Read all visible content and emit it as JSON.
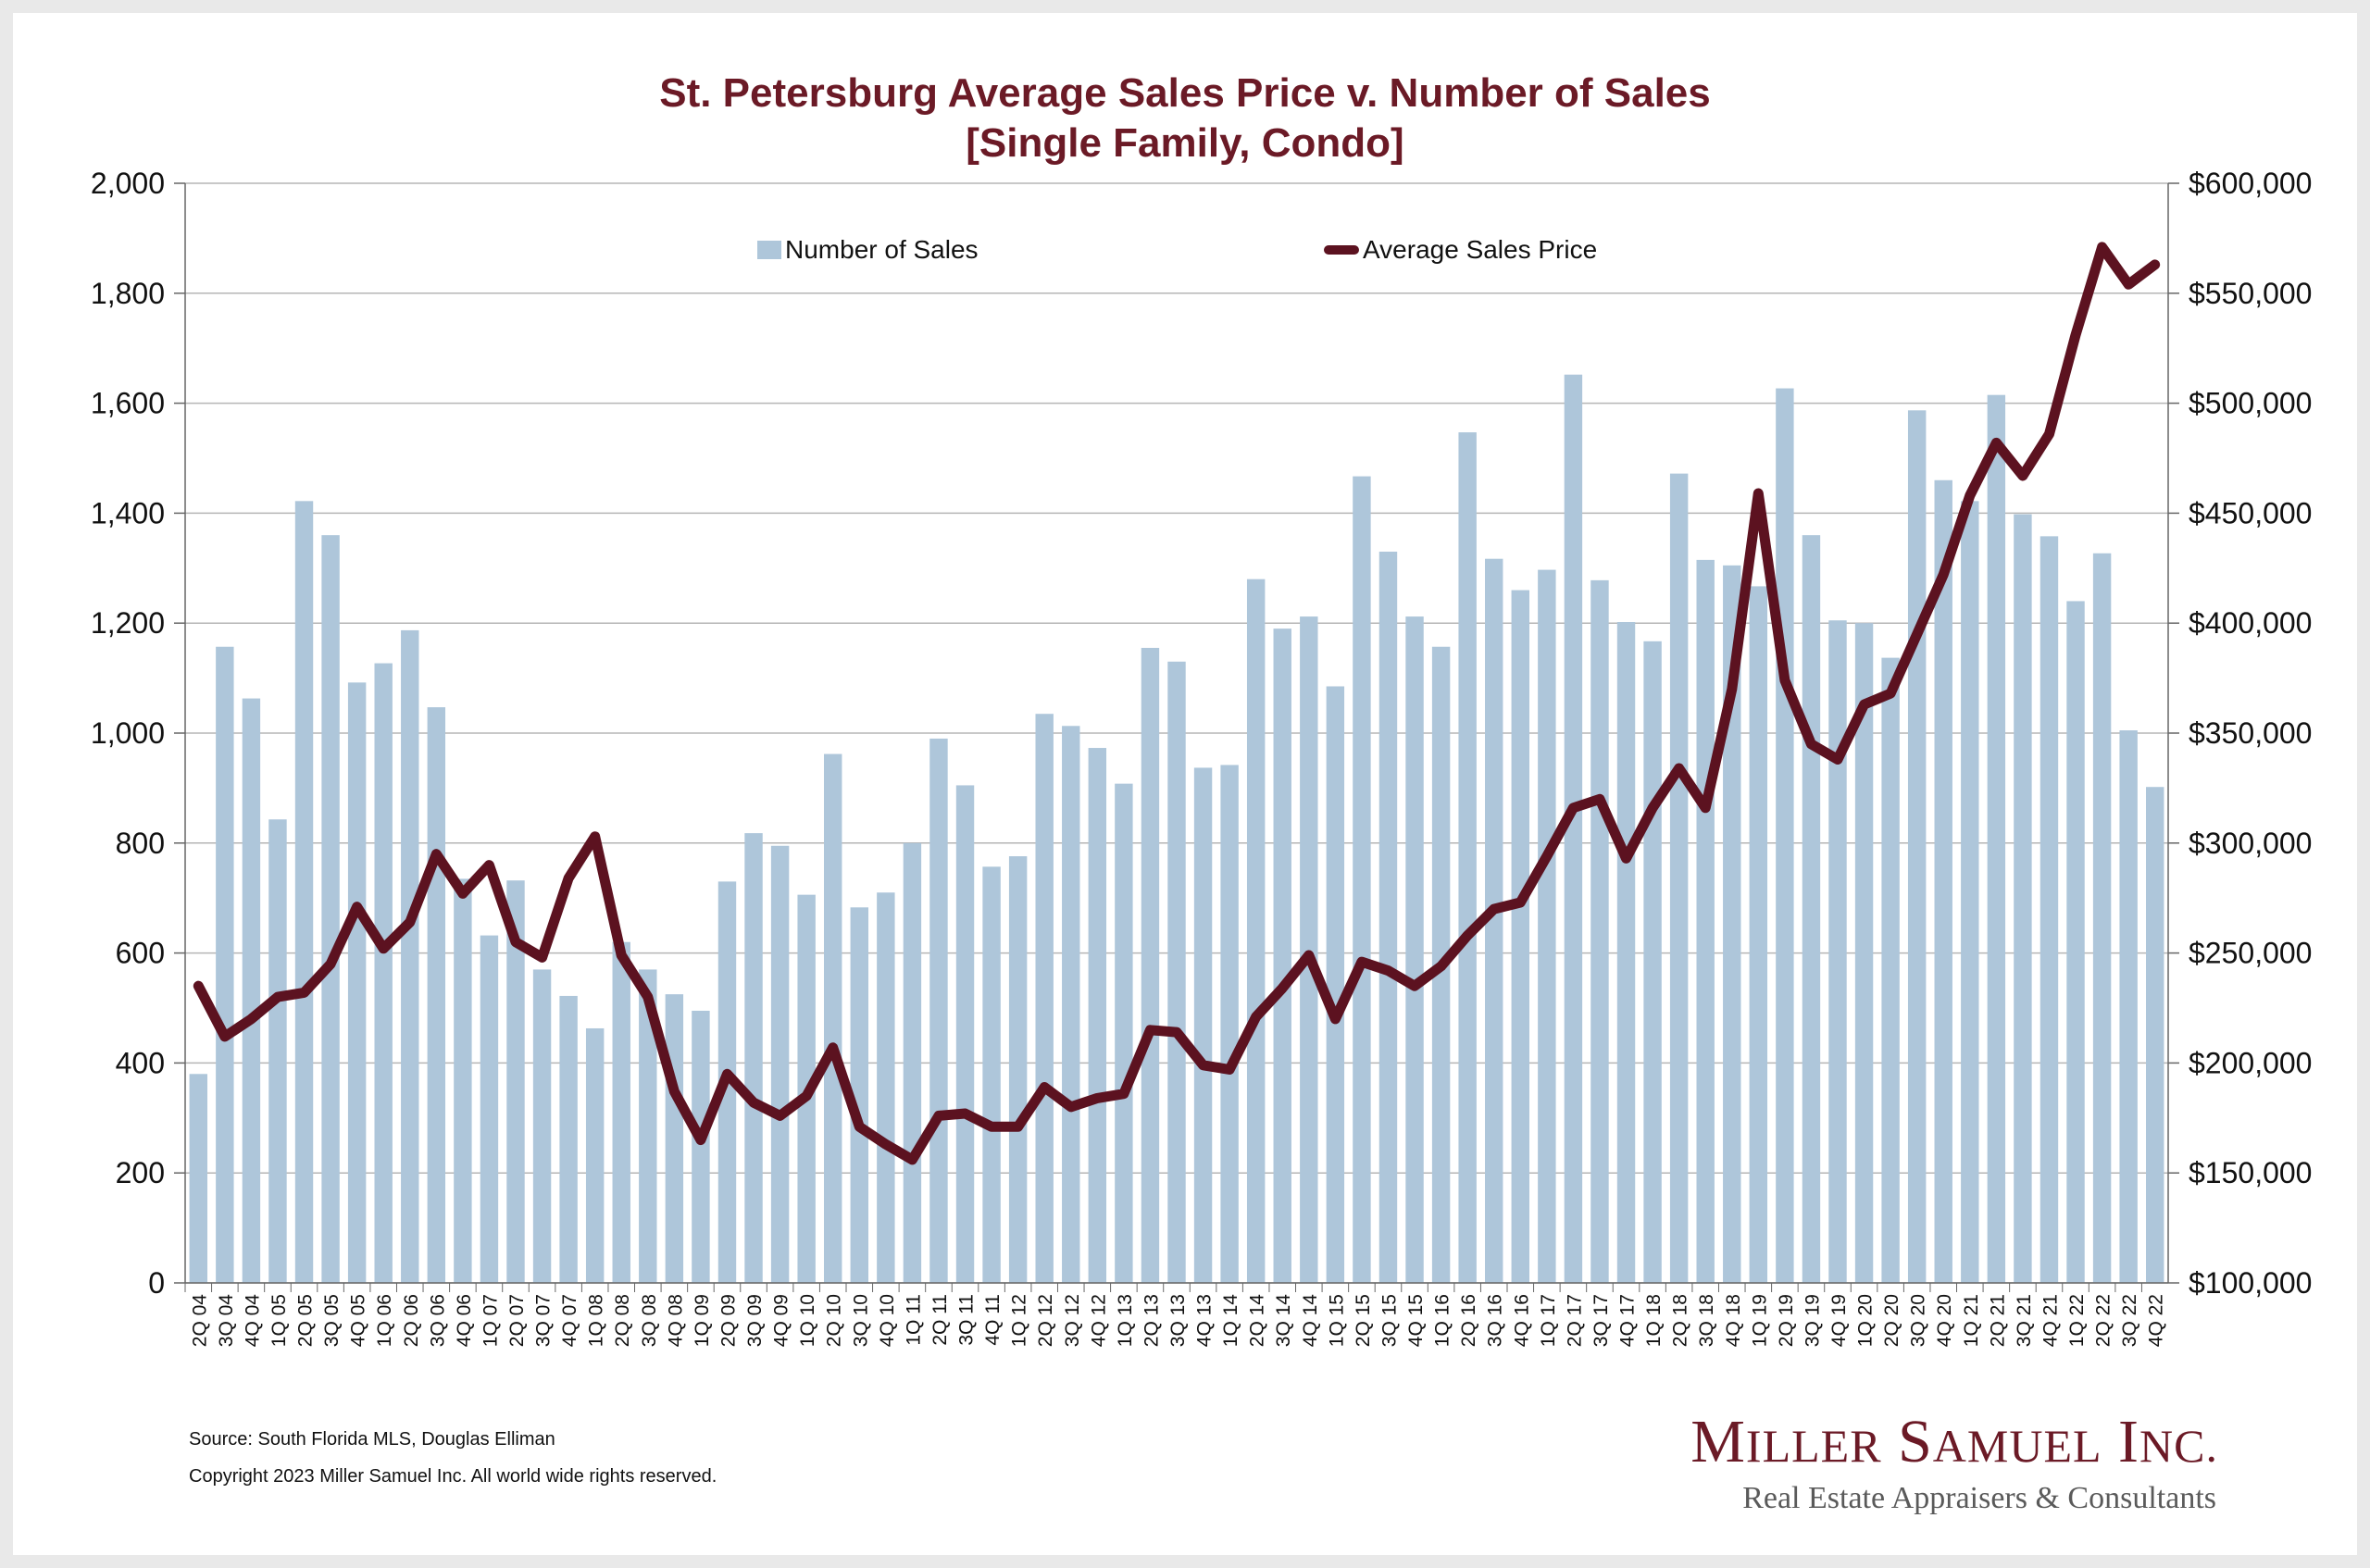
{
  "title": "St. Petersburg Average Sales Price v. Number of Sales",
  "subtitle": "[Single Family, Condo]",
  "legend": {
    "bars": "Number of Sales",
    "line": "Average Sales Price"
  },
  "footer": {
    "source": "Source: South Florida MLS, Douglas Elliman",
    "copyright": "Copyright 2023 Miller Samuel Inc.  All world wide rights reserved."
  },
  "logo": {
    "name_M": "M",
    "name_iller": "ILLER",
    "name_S": " S",
    "name_amuel": "AMUEL",
    "name_I": " I",
    "name_nc": "NC.",
    "tagline": "Real Estate Appraisers & Consultants"
  },
  "colors": {
    "bars": "#aec6da",
    "line": "#5c1220",
    "title": "#6b1a26",
    "grid": "#b5b5b5"
  },
  "chart_data": {
    "type": "bar",
    "title": "St. Petersburg Average Sales Price v. Number of Sales",
    "subtitle": "[Single Family, Condo]",
    "legend_position": "top",
    "grid": true,
    "categories": [
      "2Q 04",
      "3Q 04",
      "4Q 04",
      "1Q 05",
      "2Q 05",
      "3Q 05",
      "4Q 05",
      "1Q 06",
      "2Q 06",
      "3Q 06",
      "4Q 06",
      "1Q 07",
      "2Q 07",
      "3Q 07",
      "4Q 07",
      "1Q 08",
      "2Q 08",
      "3Q 08",
      "4Q 08",
      "1Q 09",
      "2Q 09",
      "3Q 09",
      "4Q 09",
      "1Q 10",
      "2Q 10",
      "3Q 10",
      "4Q 10",
      "1Q 11",
      "2Q 11",
      "3Q 11",
      "4Q 11",
      "1Q 12",
      "2Q 12",
      "3Q 12",
      "4Q 12",
      "1Q 13",
      "2Q 13",
      "3Q 13",
      "4Q 13",
      "1Q 14",
      "2Q 14",
      "3Q 14",
      "4Q 14",
      "1Q 15",
      "2Q 15",
      "3Q 15",
      "4Q 15",
      "1Q 16",
      "2Q 16",
      "3Q 16",
      "4Q 16",
      "1Q 17",
      "2Q 17",
      "3Q 17",
      "4Q 17",
      "1Q 18",
      "2Q 18",
      "3Q 18",
      "4Q 18",
      "1Q 19",
      "2Q 19",
      "3Q 19",
      "4Q 19",
      "1Q 20",
      "2Q 20",
      "3Q 20",
      "4Q 20",
      "1Q 21",
      "2Q 21",
      "3Q 21",
      "4Q 21",
      "1Q 22",
      "2Q 22",
      "3Q 22",
      "4Q 22"
    ],
    "y_left": {
      "min": 0,
      "max": 2000,
      "ticks": [
        0,
        200,
        400,
        600,
        800,
        1000,
        1200,
        1400,
        1600,
        1800,
        2000
      ],
      "tick_labels": [
        "0",
        "200",
        "400",
        "600",
        "800",
        "1,000",
        "1,200",
        "1,400",
        "1,600",
        "1,800",
        "2,000"
      ]
    },
    "y_right": {
      "min": 100000,
      "max": 600000,
      "ticks": [
        100000,
        150000,
        200000,
        250000,
        300000,
        350000,
        400000,
        450000,
        500000,
        550000,
        600000
      ],
      "tick_labels": [
        "$100,000",
        "$150,000",
        "$200,000",
        "$250,000",
        "$300,000",
        "$350,000",
        "$400,000",
        "$450,000",
        "$500,000",
        "$550,000",
        "$600,000"
      ]
    },
    "series": [
      {
        "name": "Number of Sales",
        "type": "bar",
        "axis": "left",
        "values": [
          380,
          1157,
          1063,
          843,
          1422,
          1360,
          1092,
          1127,
          1187,
          1047,
          735,
          632,
          732,
          570,
          522,
          463,
          620,
          570,
          525,
          495,
          730,
          818,
          795,
          706,
          962,
          683,
          710,
          800,
          990,
          905,
          757,
          776,
          1035,
          1013,
          973,
          908,
          1155,
          1130,
          937,
          942,
          1280,
          1190,
          1212,
          1085,
          1467,
          1330,
          1212,
          1157,
          1547,
          1317,
          1260,
          1297,
          1652,
          1278,
          1202,
          1167,
          1472,
          1315,
          1305,
          1267,
          1627,
          1360,
          1205,
          1200,
          1137,
          1587,
          1460,
          1422,
          1615,
          1398,
          1358,
          1240,
          1327,
          1005,
          902
        ]
      },
      {
        "name": "Average Sales Price",
        "type": "line",
        "axis": "right",
        "values": [
          235000,
          212000,
          220000,
          230000,
          232000,
          245000,
          271000,
          252000,
          264000,
          295000,
          277000,
          290000,
          255000,
          248000,
          284000,
          303000,
          249000,
          230000,
          187000,
          165000,
          195000,
          182000,
          176000,
          185000,
          207000,
          171000,
          163000,
          156000,
          176000,
          177000,
          171000,
          171000,
          189000,
          180000,
          184000,
          186000,
          215000,
          214000,
          199000,
          197000,
          221000,
          234000,
          249000,
          220000,
          246000,
          242000,
          235000,
          244000,
          258000,
          270000,
          273000,
          294000,
          316000,
          320000,
          293000,
          316000,
          334000,
          316000,
          370000,
          459000,
          374000,
          345000,
          338000,
          363000,
          368000,
          395000,
          422000,
          458000,
          482000,
          467000,
          486000,
          531000,
          571000,
          554000,
          563000
        ]
      }
    ]
  }
}
